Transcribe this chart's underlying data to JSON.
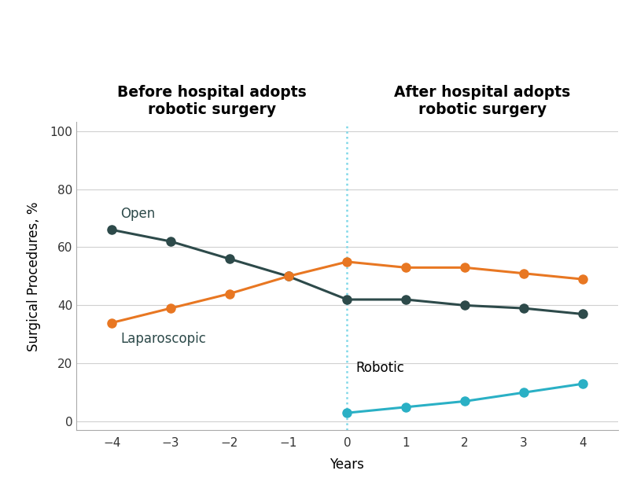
{
  "open_x": [
    -4,
    -3,
    -2,
    -1,
    0,
    1,
    2,
    3,
    4
  ],
  "open_y": [
    66,
    62,
    56,
    50,
    42,
    42,
    40,
    39,
    37
  ],
  "laparoscopic_x": [
    -4,
    -3,
    -2,
    -1,
    0,
    1,
    2,
    3,
    4
  ],
  "laparoscopic_y": [
    34,
    39,
    44,
    50,
    55,
    53,
    53,
    51,
    49
  ],
  "robotic_x": [
    0,
    1,
    2,
    3,
    4
  ],
  "robotic_y": [
    3,
    5,
    7,
    10,
    13
  ],
  "open_color": "#2d4a4a",
  "laparoscopic_color": "#e87722",
  "robotic_color": "#2ab0c5",
  "divider_color": "#7fd8e8",
  "open_label": "Open",
  "laparoscopic_label": "Laparoscopic",
  "robotic_label": "Robotic",
  "ylabel": "Surgical Procedures, %",
  "xlabel": "Years",
  "ylim": [
    -3,
    103
  ],
  "xlim": [
    -4.6,
    4.6
  ],
  "yticks": [
    0,
    20,
    40,
    60,
    80,
    100
  ],
  "xticks": [
    -4,
    -3,
    -2,
    -1,
    0,
    1,
    2,
    3,
    4
  ],
  "before_title": "Before hospital adopts\nrobotic surgery",
  "after_title": "After hospital adopts\nrobotic surgery",
  "title_fontsize": 13.5,
  "label_fontsize": 12,
  "tick_fontsize": 11,
  "linewidth": 2.2,
  "markersize": 8,
  "grid_color": "#d0d0d0",
  "background_color": "#ffffff",
  "text_color": "#000000"
}
